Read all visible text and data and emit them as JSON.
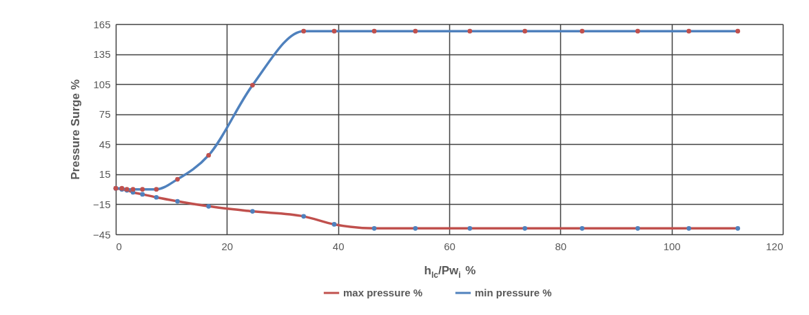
{
  "chart_data": {
    "type": "line",
    "xlabel": "h$_{lc}$/Pw$_{i}$ %",
    "ylabel": "Pressure Surge %",
    "x": [
      0,
      1.1,
      2.0,
      3.1,
      4.8,
      7.3,
      11.1,
      16.7,
      24.6,
      33.8,
      39.3,
      46.5,
      53.9,
      63.7,
      73.6,
      83.9,
      93.9,
      103.1,
      111.9
    ],
    "series": [
      {
        "name": "max pressure %",
        "color": "#c0504d",
        "colors": [
          "#4f81bd",
          "#4f81bd",
          "#4f81bd",
          "#4f81bd",
          "#4f81bd",
          "#4f81bd",
          "#4f81bd",
          "#4f81bd",
          "#4f81bd",
          "#4f81bd",
          "#4f81bd",
          "#4f81bd",
          "#4f81bd",
          "#4f81bd",
          "#4f81bd",
          "#4f81bd",
          "#4f81bd",
          "#4f81bd",
          "#4f81bd"
        ],
        "values": [
          1,
          0,
          -1,
          -3,
          -5,
          -8,
          -12,
          -17,
          -22,
          -27,
          -35,
          -39,
          -39,
          -39,
          -39,
          -39,
          -39,
          -39,
          -39
        ]
      },
      {
        "name": "min pressure %",
        "color": "#4f81bd",
        "colors": [
          "#c0504d",
          "#c0504d",
          "#c0504d",
          "#c0504d",
          "#c0504d",
          "#c0504d",
          "#c0504d",
          "#c0504d",
          "#c0504d",
          "#c0504d",
          "#c0504d",
          "#c0504d",
          "#c0504d",
          "#c0504d",
          "#c0504d",
          "#c0504d",
          "#c0504d",
          "#c0504d",
          "#c0504d"
        ],
        "values": [
          1,
          1,
          0,
          0,
          0,
          0,
          10,
          34,
          104,
          158,
          158,
          158,
          158,
          158,
          158,
          158,
          158,
          158,
          158
        ]
      }
    ],
    "xlim": [
      0,
      120
    ],
    "xticks": [
      0,
      20,
      40,
      60,
      80,
      100,
      120
    ],
    "ylim": [
      -45,
      165
    ],
    "yticks": [
      -45,
      -15,
      15,
      45,
      75,
      105,
      135,
      165
    ],
    "grid": true,
    "legend": "bottom",
    "marker": "circle",
    "line_style": "solid"
  }
}
